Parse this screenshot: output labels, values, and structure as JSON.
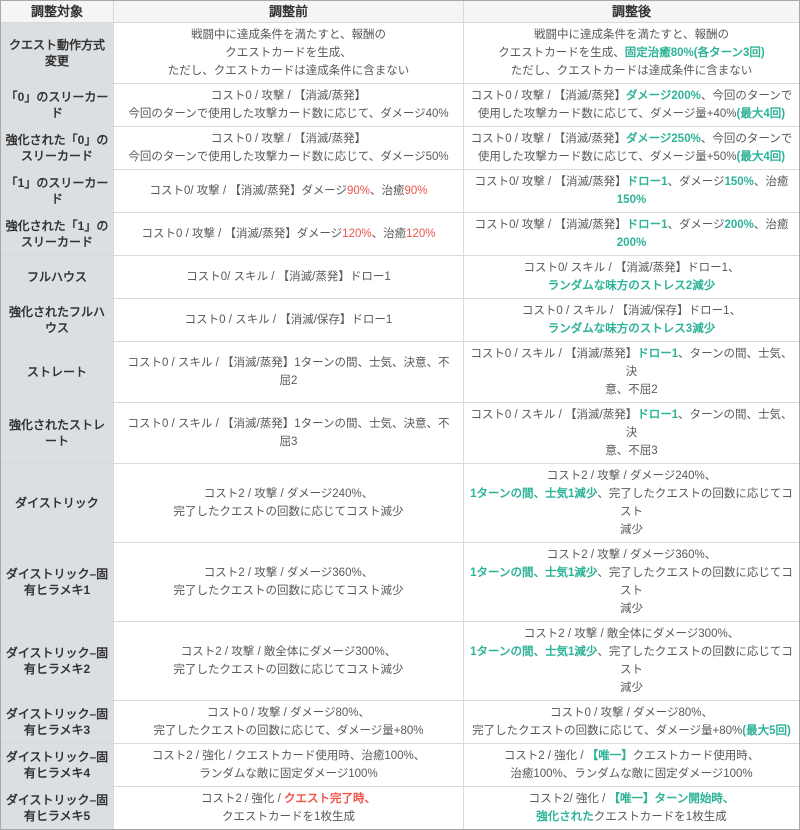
{
  "colors": {
    "highlight_after": "#2eb398",
    "highlight_before": "#f0544c",
    "header_bg": "#f5f5f5",
    "target_col_bg": "#dcdfe2"
  },
  "table": {
    "headers": [
      "調整対象",
      "調整前",
      "調整後"
    ],
    "rows": [
      {
        "target": "クエスト動作方式変更",
        "before": [
          [
            {
              "t": "戦闘中に達成条件を満たすと、報酬の"
            }
          ],
          [
            {
              "t": "クエストカードを生成、"
            }
          ],
          [
            {
              "t": "ただし、クエストカードは達成条件に含まない"
            }
          ]
        ],
        "after": [
          [
            {
              "t": "戦闘中に達成条件を満たすと、報酬の"
            }
          ],
          [
            {
              "t": "クエストカードを生成、"
            },
            {
              "t": "固定治癒80%(各ターン3回)",
              "s": "teal"
            }
          ],
          [
            {
              "t": "ただし、クエストカードは達成条件に含まない"
            }
          ]
        ]
      },
      {
        "target": "「0」のスリーカード",
        "before": [
          [
            {
              "t": "コスト0 / 攻撃 / 【消滅/蒸発】"
            }
          ],
          [
            {
              "t": "今回のターンで使用した攻撃カード数に応じて、ダメージ40%"
            }
          ]
        ],
        "after": [
          [
            {
              "t": "コスト0 / 攻撃 / 【消滅/蒸発】"
            },
            {
              "t": "ダメージ200%",
              "s": "teal"
            },
            {
              "t": "、今回のターンで"
            }
          ],
          [
            {
              "t": "使用した攻撃カード数に応じて、ダメージ量+40%"
            },
            {
              "t": "(最大4回)",
              "s": "teal"
            }
          ]
        ]
      },
      {
        "target": "強化された「0」のスリーカード",
        "before": [
          [
            {
              "t": "コスト0 / 攻撃 / 【消滅/蒸発】"
            }
          ],
          [
            {
              "t": "今回のターンで使用した攻撃カード数に応じて、ダメージ50%"
            }
          ]
        ],
        "after": [
          [
            {
              "t": "コスト0 / 攻撃 / 【消滅/蒸発】"
            },
            {
              "t": "ダメージ250%",
              "s": "teal"
            },
            {
              "t": "、今回のターンで"
            }
          ],
          [
            {
              "t": "使用した攻撃カード数に応じて、ダメージ量+50%"
            },
            {
              "t": "(最大4回)",
              "s": "teal"
            }
          ]
        ]
      },
      {
        "target": "「1」のスリーカード",
        "before": [
          [
            {
              "t": "コスト0/ 攻撃 / 【消滅/蒸発】ダメージ"
            },
            {
              "t": "90%",
              "s": "red"
            },
            {
              "t": "、治癒"
            },
            {
              "t": "90%",
              "s": "red"
            }
          ]
        ],
        "after": [
          [
            {
              "t": "コスト0/ 攻撃 / 【消滅/蒸発】"
            },
            {
              "t": "ドロー1",
              "s": "teal"
            },
            {
              "t": "、ダメージ"
            },
            {
              "t": "150%",
              "s": "teal"
            },
            {
              "t": "、治癒"
            }
          ],
          [
            {
              "t": "150%",
              "s": "teal"
            }
          ]
        ]
      },
      {
        "target": "強化された「1」のスリーカード",
        "before": [
          [
            {
              "t": "コスト0 / 攻撃 / 【消滅/蒸発】ダメージ"
            },
            {
              "t": "120%",
              "s": "red"
            },
            {
              "t": "、治癒"
            },
            {
              "t": "120%",
              "s": "red"
            }
          ]
        ],
        "after": [
          [
            {
              "t": "コスト0/ 攻撃 / 【消滅/蒸発】"
            },
            {
              "t": "ドロー1",
              "s": "teal"
            },
            {
              "t": "、ダメージ"
            },
            {
              "t": "200%",
              "s": "teal"
            },
            {
              "t": "、治癒"
            }
          ],
          [
            {
              "t": "200%",
              "s": "teal"
            }
          ]
        ]
      },
      {
        "target": "フルハウス",
        "before": [
          [
            {
              "t": "コスト0/ スキル / 【消滅/蒸発】ドロー1"
            }
          ]
        ],
        "after": [
          [
            {
              "t": "コスト0/ スキル / 【消滅/蒸発】ドロー1、"
            }
          ],
          [
            {
              "t": "ランダムな味方のストレス2減少",
              "s": "teal"
            }
          ]
        ]
      },
      {
        "target": "強化されたフルハウス",
        "before": [
          [
            {
              "t": "コスト0 / スキル / 【消滅/保存】ドロー1"
            }
          ]
        ],
        "after": [
          [
            {
              "t": "コスト0 / スキル / 【消滅/保存】ドロー1、"
            }
          ],
          [
            {
              "t": "ランダムな味方のストレス3減少",
              "s": "teal"
            }
          ]
        ]
      },
      {
        "target": "ストレート",
        "before": [
          [
            {
              "t": "コスト0 / スキル / 【消滅/蒸発】1ターンの間、士気、決意、不"
            }
          ],
          [
            {
              "t": "屈2"
            }
          ]
        ],
        "after": [
          [
            {
              "t": "コスト0 / スキル / 【消滅/蒸発】"
            },
            {
              "t": "ドロー1",
              "s": "teal"
            },
            {
              "t": "、ターンの間、士気、決"
            }
          ],
          [
            {
              "t": "意、不屈2"
            }
          ]
        ]
      },
      {
        "target": "強化されたストレート",
        "before": [
          [
            {
              "t": "コスト0 / スキル / 【消滅/蒸発】1ターンの間、士気、決意、不"
            }
          ],
          [
            {
              "t": "屈3"
            }
          ]
        ],
        "after": [
          [
            {
              "t": "コスト0 / スキル / 【消滅/蒸発】"
            },
            {
              "t": "ドロー1",
              "s": "teal"
            },
            {
              "t": "、ターンの間、士気、決"
            }
          ],
          [
            {
              "t": "意、不屈3"
            }
          ]
        ]
      },
      {
        "target": "ダイストリック",
        "before": [
          [
            {
              "t": "コスト2 / 攻撃 / ダメージ240%、"
            }
          ],
          [
            {
              "t": "完了したクエストの回数に応じてコスト減少"
            }
          ]
        ],
        "after": [
          [
            {
              "t": "コスト2 / 攻撃 / ダメージ240%、"
            }
          ],
          [
            {
              "t": "1ターンの間、士気1減少",
              "s": "teal"
            },
            {
              "t": "、完了したクエストの回数に応じてコスト"
            }
          ],
          [
            {
              "t": "減少"
            }
          ]
        ]
      },
      {
        "target": "ダイストリック–固有ヒラメキ1",
        "before": [
          [
            {
              "t": "コスト2 / 攻撃 / ダメージ360%、"
            }
          ],
          [
            {
              "t": "完了したクエストの回数に応じてコスト減少"
            }
          ]
        ],
        "after": [
          [
            {
              "t": "コスト2 / 攻撃 / ダメージ360%、"
            }
          ],
          [
            {
              "t": "1ターンの間、士気1減少",
              "s": "teal"
            },
            {
              "t": "、完了したクエストの回数に応じてコスト"
            }
          ],
          [
            {
              "t": "減少"
            }
          ]
        ]
      },
      {
        "target": "ダイストリック–固有ヒラメキ2",
        "before": [
          [
            {
              "t": "コスト2 / 攻撃 / 敵全体にダメージ300%、"
            }
          ],
          [
            {
              "t": "完了したクエストの回数に応じてコスト減少"
            }
          ]
        ],
        "after": [
          [
            {
              "t": "コスト2 / 攻撃 / 敵全体にダメージ300%、"
            }
          ],
          [
            {
              "t": "1ターンの間、士気1減少",
              "s": "teal"
            },
            {
              "t": "、完了したクエストの回数に応じてコスト"
            }
          ],
          [
            {
              "t": "減少"
            }
          ]
        ]
      },
      {
        "target": "ダイストリック–固有ヒラメキ3",
        "before": [
          [
            {
              "t": "コスト0 / 攻撃 / ダメージ80%、"
            }
          ],
          [
            {
              "t": "完了したクエストの回数に応じて、ダメージ量+80%"
            }
          ]
        ],
        "after": [
          [
            {
              "t": "コスト0 / 攻撃 / ダメージ80%、"
            }
          ],
          [
            {
              "t": "完了したクエストの回数に応じて、ダメージ量+80%"
            },
            {
              "t": "(最大5回)",
              "s": "teal"
            }
          ]
        ]
      },
      {
        "target": "ダイストリック–固有ヒラメキ4",
        "before": [
          [
            {
              "t": "コスト2 / 強化 / クエストカード使用時、治癒100%、"
            }
          ],
          [
            {
              "t": "ランダムな敵に固定ダメージ100%"
            }
          ]
        ],
        "after": [
          [
            {
              "t": "コスト2 / 強化 / "
            },
            {
              "t": "【唯一】",
              "s": "teal"
            },
            {
              "t": "クエストカード使用時、"
            }
          ],
          [
            {
              "t": "治癒100%、ランダムな敵に固定ダメージ100%"
            }
          ]
        ]
      },
      {
        "target": "ダイストリック–固有ヒラメキ5",
        "before": [
          [
            {
              "t": "コスト2 / 強化 / "
            },
            {
              "t": "クエスト完了時、",
              "s": "red-bold"
            }
          ],
          [
            {
              "t": "クエストカードを1枚生成"
            }
          ]
        ],
        "after": [
          [
            {
              "t": "コスト2/ 強化 / "
            },
            {
              "t": "【唯一】ターン開始時、",
              "s": "teal"
            }
          ],
          [
            {
              "t": "強化された",
              "s": "teal"
            },
            {
              "t": "クエストカードを1枚生成"
            }
          ]
        ]
      }
    ]
  }
}
